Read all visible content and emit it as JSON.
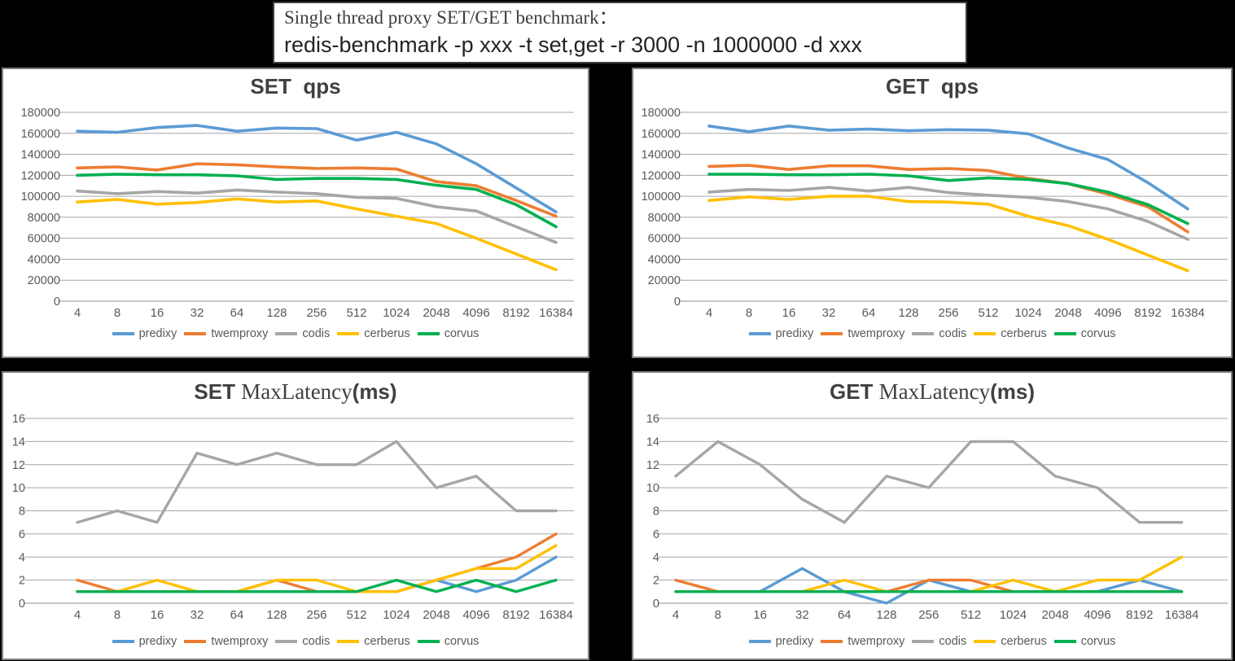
{
  "title_box": {
    "line1": "Single thread proxy SET/GET benchmark：",
    "line2": "redis-benchmark -p xxx -t set,get -r 3000 -n 1000000 -d xxx"
  },
  "legend": [
    "predixy",
    "twemproxy",
    "codis",
    "cerberus",
    "corvus"
  ],
  "categories": [
    "4",
    "8",
    "16",
    "32",
    "64",
    "128",
    "256",
    "512",
    "1024",
    "2048",
    "4096",
    "8192",
    "16384"
  ],
  "colors": {
    "series": {
      "predixy": "#5B9BD5",
      "twemproxy": "#ED7D31",
      "codis": "#A6A6A6",
      "cerberus": "#FFC000",
      "corvus": "#00B050"
    },
    "grid": "#A6A6A6",
    "axis_line": "#8C8C8C",
    "tick_text": "#595959",
    "chart_title": "#404040"
  },
  "chart_data": [
    {
      "id": "set-qps",
      "type": "line",
      "title": "SET  qps",
      "title_parts": [
        {
          "text": "SET  qps",
          "font": "sans"
        }
      ],
      "ylim": [
        0,
        180000
      ],
      "yticks": [
        "180000",
        "160000",
        "140000",
        "120000",
        "100000",
        "80000",
        "60000",
        "40000",
        "20000",
        "0"
      ],
      "grid": true,
      "legend_position": "bottom",
      "series": [
        {
          "name": "predixy",
          "values": [
            162000,
            161000,
            165500,
            167500,
            162000,
            165000,
            164500,
            153500,
            161000,
            150000,
            131000,
            108000,
            85000
          ]
        },
        {
          "name": "twemproxy",
          "values": [
            127000,
            128000,
            125000,
            131000,
            130000,
            128000,
            126500,
            127000,
            126000,
            114000,
            110000,
            96000,
            81000
          ]
        },
        {
          "name": "codis",
          "values": [
            105000,
            102500,
            104500,
            103000,
            106000,
            104000,
            102500,
            99000,
            98000,
            90000,
            86000,
            71000,
            56000
          ]
        },
        {
          "name": "cerberus",
          "values": [
            94500,
            97000,
            92500,
            94000,
            97500,
            94500,
            95500,
            88000,
            81000,
            74000,
            60000,
            45000,
            30000
          ]
        },
        {
          "name": "corvus",
          "values": [
            120000,
            121000,
            120500,
            120500,
            119500,
            116000,
            117000,
            117000,
            116000,
            110500,
            106500,
            92000,
            71000
          ]
        }
      ]
    },
    {
      "id": "get-qps",
      "type": "line",
      "title": "GET  qps",
      "title_parts": [
        {
          "text": "GET  qps",
          "font": "sans"
        }
      ],
      "ylim": [
        0,
        180000
      ],
      "yticks": [
        "180000",
        "160000",
        "140000",
        "120000",
        "100000",
        "80000",
        "60000",
        "40000",
        "20000",
        "0"
      ],
      "grid": true,
      "legend_position": "bottom",
      "series": [
        {
          "name": "predixy",
          "values": [
            167000,
            161500,
            167000,
            163000,
            164000,
            162500,
            163500,
            163000,
            159500,
            146000,
            135000,
            113000,
            88000
          ]
        },
        {
          "name": "twemproxy",
          "values": [
            128500,
            129500,
            125500,
            129000,
            129000,
            125500,
            126500,
            124500,
            117000,
            112000,
            102000,
            90000,
            66000
          ]
        },
        {
          "name": "codis",
          "values": [
            104000,
            106500,
            105500,
            108500,
            105000,
            108500,
            103500,
            101000,
            99000,
            95000,
            88000,
            76000,
            59000
          ]
        },
        {
          "name": "cerberus",
          "values": [
            96000,
            99500,
            97000,
            100000,
            100000,
            95000,
            94500,
            92500,
            81000,
            72000,
            59000,
            44000,
            29000
          ]
        },
        {
          "name": "corvus",
          "values": [
            121000,
            121000,
            120500,
            120500,
            121000,
            119500,
            115000,
            117500,
            116000,
            112000,
            104000,
            92000,
            74000
          ]
        }
      ]
    },
    {
      "id": "set-maxlatency",
      "type": "line",
      "title": "SET MaxLatency(ms)",
      "title_parts": [
        {
          "text": "SET ",
          "font": "sans"
        },
        {
          "text": "MaxLatency",
          "font": "serif"
        },
        {
          "text": "(ms)",
          "font": "sans"
        }
      ],
      "ylim": [
        0,
        16
      ],
      "yticks": [
        "16",
        "14",
        "12",
        "10",
        "8",
        "6",
        "4",
        "2",
        "0"
      ],
      "grid": true,
      "legend_position": "bottom",
      "series": [
        {
          "name": "predixy",
          "values": [
            1,
            1,
            1,
            1,
            1,
            1,
            1,
            1,
            1,
            2,
            1,
            2,
            4
          ]
        },
        {
          "name": "twemproxy",
          "values": [
            2,
            1,
            1,
            1,
            1,
            2,
            1,
            1,
            1,
            2,
            3,
            4,
            6
          ]
        },
        {
          "name": "codis",
          "values": [
            7,
            8,
            7,
            13,
            12,
            13,
            12,
            12,
            14,
            10,
            11,
            8,
            8
          ]
        },
        {
          "name": "cerberus",
          "values": [
            1,
            1,
            2,
            1,
            1,
            2,
            2,
            1,
            1,
            2,
            3,
            3,
            5
          ]
        },
        {
          "name": "corvus",
          "values": [
            1,
            1,
            1,
            1,
            1,
            1,
            1,
            1,
            2,
            1,
            2,
            1,
            2
          ]
        }
      ]
    },
    {
      "id": "get-maxlatency",
      "type": "line",
      "title": "GET MaxLatency(ms)",
      "title_parts": [
        {
          "text": "GET ",
          "font": "sans"
        },
        {
          "text": "MaxLatency",
          "font": "serif"
        },
        {
          "text": "(ms)",
          "font": "sans"
        }
      ],
      "ylim": [
        0,
        16
      ],
      "yticks": [
        "16",
        "14",
        "12",
        "10",
        "8",
        "6",
        "4",
        "2",
        "0"
      ],
      "grid": true,
      "legend_position": "bottom",
      "series": [
        {
          "name": "predixy",
          "values": [
            1,
            1,
            1,
            3,
            1,
            0,
            2,
            1,
            1,
            1,
            1,
            2,
            1
          ]
        },
        {
          "name": "twemproxy",
          "values": [
            2,
            1,
            1,
            1,
            1,
            1,
            2,
            2,
            1,
            1,
            1,
            1,
            1
          ]
        },
        {
          "name": "codis",
          "values": [
            11,
            14,
            12,
            9,
            7,
            11,
            10,
            14,
            14,
            11,
            10,
            7,
            7
          ]
        },
        {
          "name": "cerberus",
          "values": [
            1,
            1,
            1,
            1,
            2,
            1,
            1,
            1,
            2,
            1,
            2,
            2,
            4
          ]
        },
        {
          "name": "corvus",
          "values": [
            1,
            1,
            1,
            1,
            1,
            1,
            1,
            1,
            1,
            1,
            1,
            1,
            1
          ]
        }
      ]
    }
  ]
}
